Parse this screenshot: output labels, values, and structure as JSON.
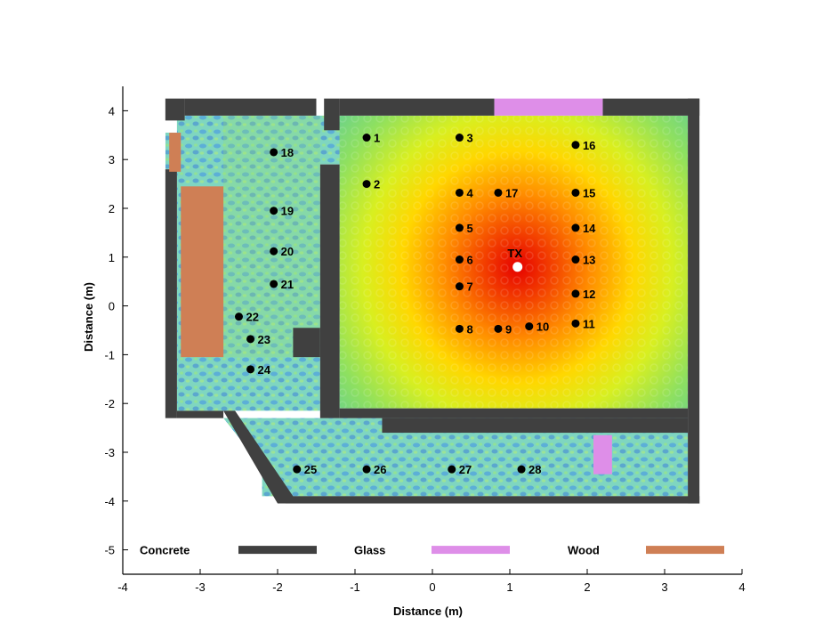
{
  "chart_data": {
    "type": "scatter",
    "xlabel": "Distance (m)",
    "ylabel": "Distance (m)",
    "xlim": [
      -4,
      4
    ],
    "ylim": [
      -5.5,
      4.5
    ],
    "x_ticks": [
      -4,
      -3,
      -2,
      -1,
      0,
      1,
      2,
      3,
      4
    ],
    "y_ticks": [
      -5,
      -4,
      -3,
      -2,
      -1,
      0,
      1,
      2,
      3,
      4
    ],
    "grid": false,
    "background": "heatmap of received signal strength, red near TX fading through yellow and green to blue",
    "transmitter": {
      "label": "TX",
      "x": 1.1,
      "y": 0.8
    },
    "points": [
      {
        "label": "1",
        "x": -0.85,
        "y": 3.45
      },
      {
        "label": "2",
        "x": -0.85,
        "y": 2.5
      },
      {
        "label": "3",
        "x": 0.35,
        "y": 3.45
      },
      {
        "label": "4",
        "x": 0.35,
        "y": 2.32
      },
      {
        "label": "5",
        "x": 0.35,
        "y": 1.6
      },
      {
        "label": "6",
        "x": 0.35,
        "y": 0.95
      },
      {
        "label": "7",
        "x": 0.35,
        "y": 0.4
      },
      {
        "label": "8",
        "x": 0.35,
        "y": -0.47
      },
      {
        "label": "9",
        "x": 0.85,
        "y": -0.47
      },
      {
        "label": "10",
        "x": 1.25,
        "y": -0.42
      },
      {
        "label": "11",
        "x": 1.85,
        "y": -0.36
      },
      {
        "label": "12",
        "x": 1.85,
        "y": 0.25
      },
      {
        "label": "13",
        "x": 1.85,
        "y": 0.95
      },
      {
        "label": "14",
        "x": 1.85,
        "y": 1.6
      },
      {
        "label": "15",
        "x": 1.85,
        "y": 2.32
      },
      {
        "label": "16",
        "x": 1.85,
        "y": 3.3
      },
      {
        "label": "17",
        "x": 0.85,
        "y": 2.32
      },
      {
        "label": "18",
        "x": -2.05,
        "y": 3.15
      },
      {
        "label": "19",
        "x": -2.05,
        "y": 1.95
      },
      {
        "label": "20",
        "x": -2.05,
        "y": 1.12
      },
      {
        "label": "21",
        "x": -2.05,
        "y": 0.45
      },
      {
        "label": "22",
        "x": -2.5,
        "y": -0.22
      },
      {
        "label": "23",
        "x": -2.35,
        "y": -0.68
      },
      {
        "label": "24",
        "x": -2.35,
        "y": -1.3
      },
      {
        "label": "25",
        "x": -1.75,
        "y": -3.35
      },
      {
        "label": "26",
        "x": -0.85,
        "y": -3.35
      },
      {
        "label": "27",
        "x": 0.25,
        "y": -3.35
      },
      {
        "label": "28",
        "x": 1.15,
        "y": -3.35
      }
    ],
    "legend": {
      "placement": "bottom",
      "items": [
        {
          "label": "Concrete",
          "color": "#404040"
        },
        {
          "label": "Glass",
          "color": "#de8ee8"
        },
        {
          "label": "Wood",
          "color": "#cf7f55"
        }
      ]
    },
    "materials": {
      "concrete": [
        {
          "x0": -3.45,
          "y0": 3.8,
          "x1": -3.2,
          "y1": 4.25
        },
        {
          "x0": -3.2,
          "y0": 3.9,
          "x1": -1.5,
          "y1": 4.25
        },
        {
          "x0": -1.4,
          "y0": 3.6,
          "x1": -1.2,
          "y1": 4.25
        },
        {
          "x0": -1.2,
          "y0": 3.9,
          "x1": 0.8,
          "y1": 4.25
        },
        {
          "x0": 2.2,
          "y0": 3.9,
          "x1": 3.45,
          "y1": 4.25
        },
        {
          "x0": 3.3,
          "y0": -4.05,
          "x1": 3.45,
          "y1": 4.25
        },
        {
          "x0": -3.45,
          "y0": -2.3,
          "x1": -3.3,
          "y1": 2.8
        },
        {
          "x0": -3.3,
          "y0": -2.3,
          "x1": -2.7,
          "y1": -2.15
        },
        {
          "x0": -1.45,
          "y0": -2.3,
          "x1": -1.2,
          "y1": 2.9
        },
        {
          "x0": -1.2,
          "y0": -2.3,
          "x1": 3.3,
          "y1": -2.1
        },
        {
          "x0": -0.65,
          "y0": -2.6,
          "x1": 3.3,
          "y1": -2.3
        },
        {
          "x0": -1.8,
          "y0": -1.05,
          "x1": -1.45,
          "y1": -0.45
        },
        {
          "x0": -1.9,
          "y0": -4.05,
          "x1": 3.45,
          "y1": -3.9
        }
      ],
      "glass": [
        {
          "x0": 0.8,
          "y0": 3.9,
          "x1": 2.2,
          "y1": 4.25
        },
        {
          "x0": 2.08,
          "y0": -3.45,
          "x1": 2.32,
          "y1": -2.65
        }
      ],
      "wood": [
        {
          "x0": -3.4,
          "y0": 2.75,
          "x1": -3.25,
          "y1": 3.55
        },
        {
          "x0": -3.25,
          "y0": -1.05,
          "x1": -2.7,
          "y1": 2.45
        }
      ]
    }
  }
}
